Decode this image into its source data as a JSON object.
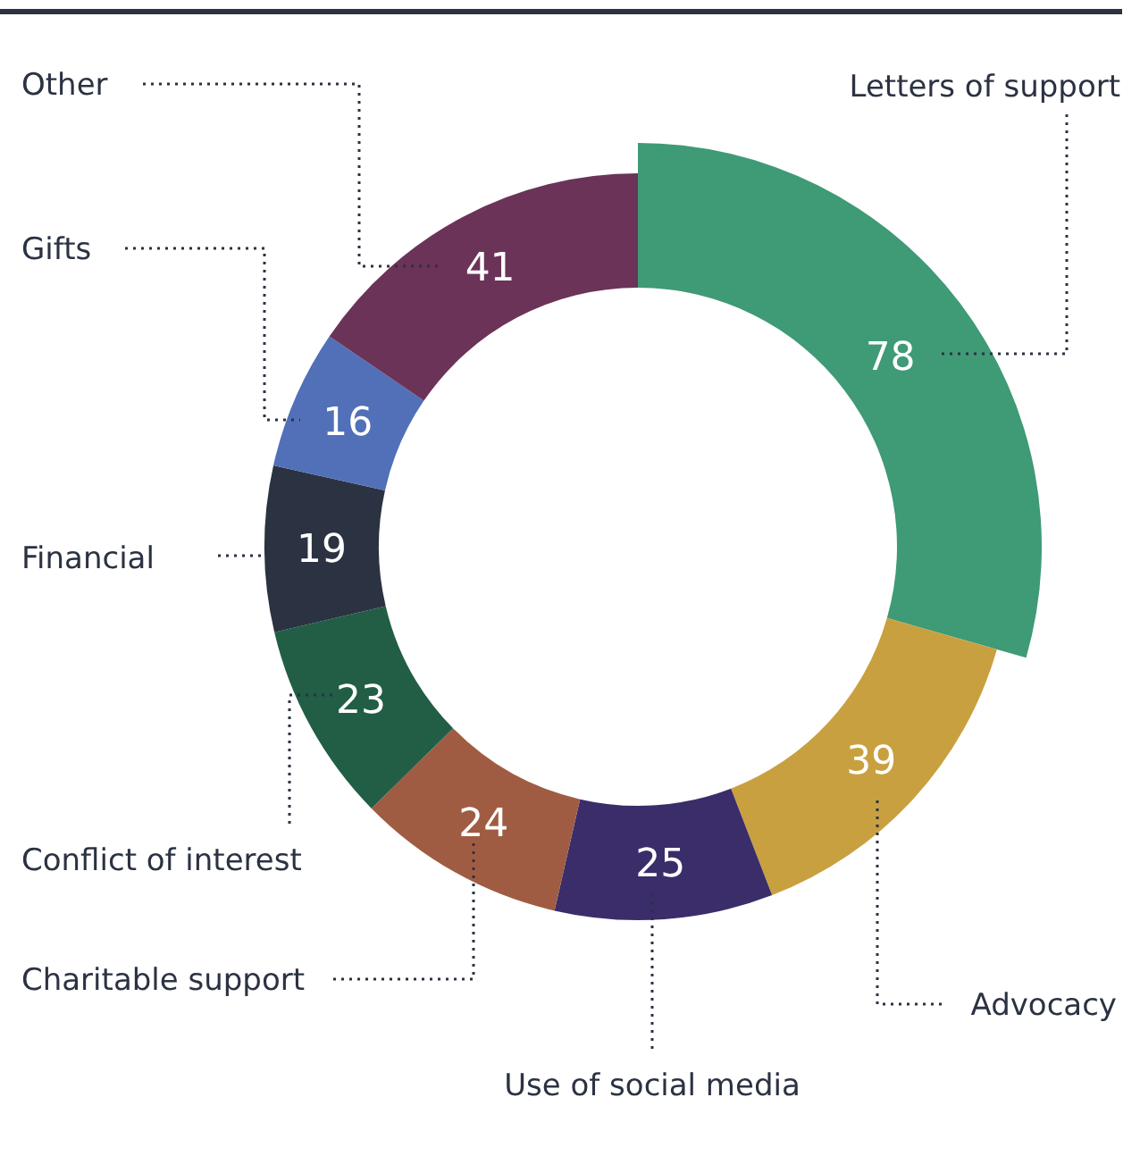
{
  "chart_data": {
    "type": "donut",
    "categories": [
      "Letters of support",
      "Advocacy",
      "Use of social media",
      "Charitable support",
      "Conflict of interest",
      "Financial",
      "Gifts",
      "Other"
    ],
    "values": [
      78,
      39,
      25,
      24,
      23,
      19,
      16,
      41
    ],
    "colors": [
      "#3f9a76",
      "#c9a040",
      "#3a2d6a",
      "#a05c42",
      "#215e45",
      "#2b3242",
      "#5170b8",
      "#6b3358"
    ],
    "data_labels": true
  }
}
